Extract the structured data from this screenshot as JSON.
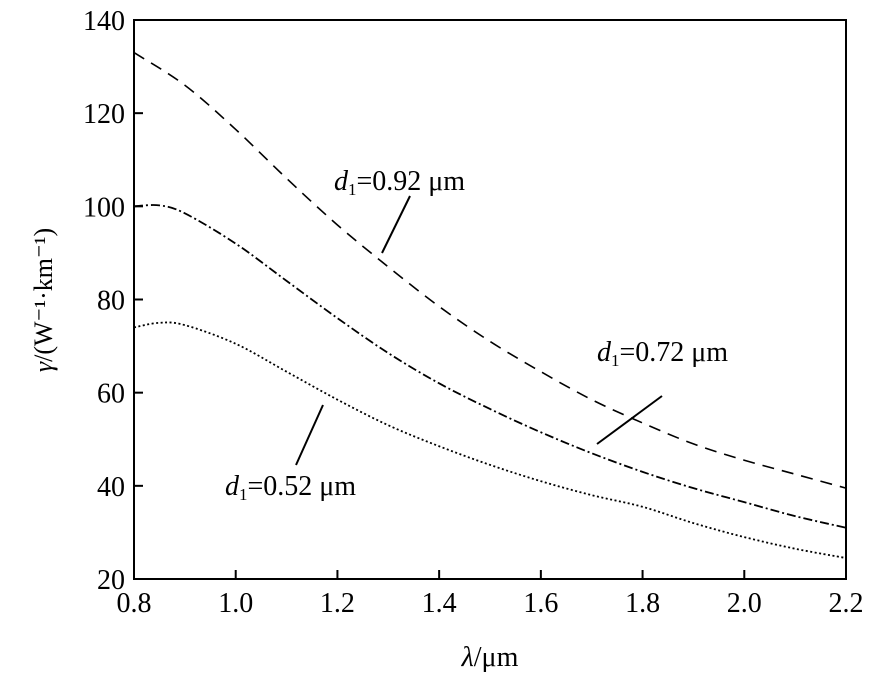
{
  "chart_data": {
    "type": "line",
    "title": "",
    "xlabel": {
      "symbol": "λ",
      "unit": "/μm"
    },
    "ylabel": {
      "symbol": "γ",
      "unit": "/(W⁻¹·km⁻¹)"
    },
    "xlim": [
      0.8,
      2.2
    ],
    "ylim": [
      20,
      140
    ],
    "xticks": [
      0.8,
      1.0,
      1.2,
      1.4,
      1.6,
      1.8,
      2.0,
      2.2
    ],
    "xtick_labels": [
      "0.8",
      "1.0",
      "1.2",
      "1.4",
      "1.6",
      "1.8",
      "2.0",
      "2.2"
    ],
    "yticks": [
      20,
      40,
      60,
      80,
      100,
      120,
      140
    ],
    "ytick_labels": [
      "20",
      "40",
      "60",
      "80",
      "100",
      "120",
      "140"
    ],
    "grid": false,
    "legend": "none",
    "series": [
      {
        "name": "d1=0.92 μm",
        "style": "dashed",
        "x": [
          0.8,
          0.9,
          1.0,
          1.1,
          1.2,
          1.3,
          1.4,
          1.5,
          1.6,
          1.7,
          1.8,
          1.9,
          2.0,
          2.1,
          2.2
        ],
        "y": [
          133,
          126,
          116.5,
          106,
          96,
          87,
          78.5,
          71,
          64.5,
          58.5,
          53.5,
          49,
          45.5,
          42.5,
          39.5
        ]
      },
      {
        "name": "d1=0.72 μm",
        "style": "dashdot",
        "x": [
          0.8,
          0.85,
          0.9,
          1.0,
          1.1,
          1.2,
          1.3,
          1.4,
          1.5,
          1.6,
          1.7,
          1.8,
          1.9,
          2.0,
          2.1,
          2.2
        ],
        "y": [
          100,
          100.2,
          98.5,
          92,
          84,
          76,
          68.5,
          62,
          56.5,
          51.5,
          47,
          43,
          39.5,
          36.5,
          33.5,
          31
        ]
      },
      {
        "name": "d1=0.52 μm",
        "style": "dotted",
        "x": [
          0.8,
          0.85,
          0.9,
          1.0,
          1.1,
          1.2,
          1.3,
          1.4,
          1.5,
          1.6,
          1.7,
          1.8,
          1.9,
          2.0,
          2.1,
          2.2
        ],
        "y": [
          74,
          75,
          74.5,
          70.5,
          64.5,
          58.5,
          53,
          48.5,
          44.5,
          41,
          38,
          35.5,
          32,
          29,
          26.5,
          24.5
        ]
      }
    ],
    "annotations": [
      {
        "var": "d",
        "sub": "1",
        "value": "=0.92 μm",
        "series": 0
      },
      {
        "var": "d",
        "sub": "1",
        "value": "=0.72 μm",
        "series": 1
      },
      {
        "var": "d",
        "sub": "1",
        "value": "=0.52 μm",
        "series": 2
      }
    ]
  }
}
